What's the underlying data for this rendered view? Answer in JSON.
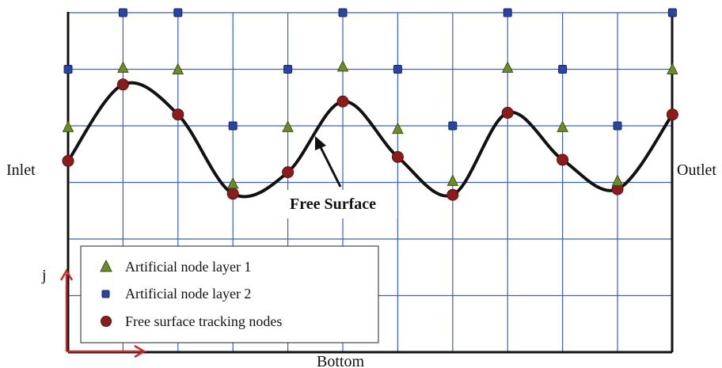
{
  "labels": {
    "inlet": "Inlet",
    "outlet": "Outlet",
    "bottom": "Bottom",
    "axis_j": "j",
    "free_surface": "Free Surface"
  },
  "legend": {
    "layer1": "Artificial node layer 1",
    "layer2": "Artificial node layer 2",
    "tracking": "Free surface tracking nodes"
  },
  "colors": {
    "grid": "#3a5fc4",
    "layer1": "#6e8b2a",
    "layer2": "#2c44a0",
    "tracking": "#8b1c1c",
    "curve": "#111111",
    "axes": "#c0302b"
  },
  "grid": {
    "columns": 11,
    "rows": 6
  },
  "nodes": {
    "tracking": [
      {
        "i": 0,
        "j": 3.38
      },
      {
        "i": 1,
        "j": 4.73
      },
      {
        "i": 2,
        "j": 4.2
      },
      {
        "i": 3,
        "j": 2.8
      },
      {
        "i": 4,
        "j": 3.18
      },
      {
        "i": 5,
        "j": 4.43
      },
      {
        "i": 6,
        "j": 3.45
      },
      {
        "i": 7,
        "j": 2.78
      },
      {
        "i": 8,
        "j": 4.23
      },
      {
        "i": 9,
        "j": 3.4
      },
      {
        "i": 10,
        "j": 2.88
      },
      {
        "i": 11,
        "j": 4.2
      }
    ],
    "layer1": [
      {
        "i": 0,
        "j": 3.98
      },
      {
        "i": 1,
        "j": 5.03
      },
      {
        "i": 2,
        "j": 5.0
      },
      {
        "i": 3,
        "j": 2.98
      },
      {
        "i": 4,
        "j": 3.98
      },
      {
        "i": 5,
        "j": 5.05
      },
      {
        "i": 6,
        "j": 3.95
      },
      {
        "i": 7,
        "j": 3.03
      },
      {
        "i": 8,
        "j": 5.03
      },
      {
        "i": 9,
        "j": 3.98
      },
      {
        "i": 10,
        "j": 3.03
      },
      {
        "i": 11,
        "j": 5.0
      }
    ],
    "layer2": [
      {
        "i": 0,
        "j": 5.0
      },
      {
        "i": 1,
        "j": 6.0
      },
      {
        "i": 2,
        "j": 6.0
      },
      {
        "i": 3,
        "j": 4.0
      },
      {
        "i": 4,
        "j": 5.0
      },
      {
        "i": 5,
        "j": 6.0
      },
      {
        "i": 6,
        "j": 5.0
      },
      {
        "i": 7,
        "j": 4.0
      },
      {
        "i": 8,
        "j": 6.0
      },
      {
        "i": 9,
        "j": 5.0
      },
      {
        "i": 10,
        "j": 4.0
      },
      {
        "i": 11,
        "j": 6.0
      }
    ]
  }
}
